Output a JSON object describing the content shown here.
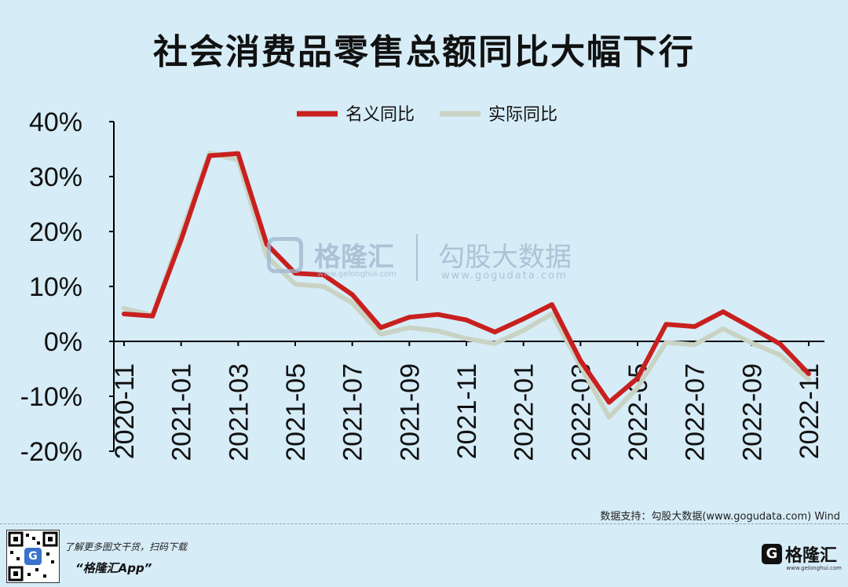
{
  "title": "社会消费品零售总额同比大幅下行",
  "source": "数据支持：勾股大数据(www.gogudata.com) Wind",
  "watermark": {
    "brand": "格隆汇",
    "brand_url": "www.gelonghui.com",
    "partner": "勾股大数据",
    "partner_url": "www.gogudata.com"
  },
  "footer": {
    "promo_line": "了解更多图文干货，扫码下载",
    "app_name": "“格隆汇App”",
    "logo_text": "格隆汇",
    "logo_sub": "www.gelonghui.com",
    "qr_glyph": "G"
  },
  "chart_data": {
    "type": "line",
    "title": "社会消费品零售总额同比大幅下行",
    "x": [
      "2020-11",
      "2020-12",
      "2021-01",
      "2021-02",
      "2021-03",
      "2021-04",
      "2021-05",
      "2021-06",
      "2021-07",
      "2021-08",
      "2021-09",
      "2021-10",
      "2021-11",
      "2021-12",
      "2022-01",
      "2022-02",
      "2022-03",
      "2022-04",
      "2022-05",
      "2022-06",
      "2022-07",
      "2022-08",
      "2022-09",
      "2022-10",
      "2022-11"
    ],
    "x_tick_labels": [
      "2020-11",
      "2021-01",
      "2021-03",
      "2021-05",
      "2021-07",
      "2021-09",
      "2021-11",
      "2022-01",
      "2022-03",
      "2022-05",
      "2022-07",
      "2022-09",
      "2022-11"
    ],
    "y_tick_labels": [
      "40%",
      "30%",
      "20%",
      "10%",
      "0%",
      "-10%",
      "-20%"
    ],
    "ylim": [
      -20,
      40
    ],
    "series": [
      {
        "name": "名义同比",
        "color": "#c8201f",
        "values": [
          5.0,
          4.6,
          18.5,
          33.8,
          34.2,
          17.7,
          12.4,
          12.1,
          8.5,
          2.5,
          4.4,
          4.9,
          3.9,
          1.7,
          4.1,
          6.7,
          -3.5,
          -11.1,
          -6.7,
          3.1,
          2.7,
          5.4,
          2.5,
          -0.5,
          -5.9
        ]
      },
      {
        "name": "实际同比",
        "color": "#c9d3c4",
        "values": [
          6.0,
          4.8,
          19.5,
          34.3,
          33.0,
          15.5,
          10.4,
          10.0,
          7.0,
          1.3,
          2.5,
          1.9,
          0.5,
          -0.4,
          2.0,
          5.0,
          -4.5,
          -13.8,
          -8.4,
          -0.2,
          -0.6,
          2.3,
          -0.3,
          -2.5,
          -6.9
        ]
      }
    ],
    "legend_position": "top",
    "grid": false
  }
}
